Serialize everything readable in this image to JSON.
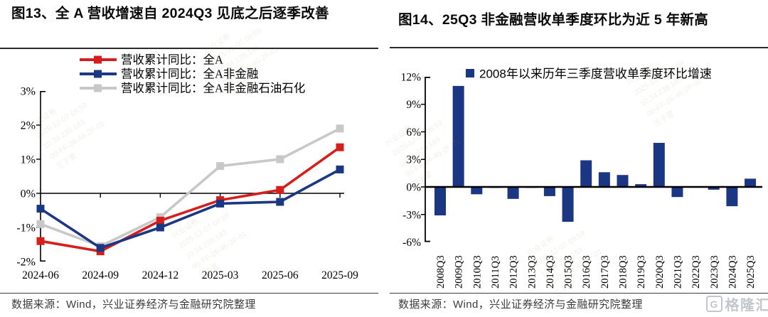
{
  "colors": {
    "red_series": "#d41f1c",
    "navy_series": "#1b3784",
    "gray_series": "#c8c8c8",
    "axis": "#000000",
    "rule": "#2a2a2a",
    "source_text": "#3c3c3c",
    "logo_gray": "#c3c6cd",
    "watermark": "#9c7b3c"
  },
  "left_panel": {
    "title": "图13、全 A 营收增速自 2024Q3 见底之后逐季改善",
    "source": "数据来源：Wind，兴业证券经济与金融研究院整理"
  },
  "right_panel": {
    "title": "图14、25Q3 非金融营收单季度环比为近 5 年新高",
    "source": "数据来源：Wind，兴业证券经济与金融研究院整理",
    "logo": {
      "letter": "G",
      "text": "格隆汇"
    }
  },
  "chart_data": [
    {
      "type": "line",
      "title": "图13、全 A 营收增速自 2024Q3 见底之后逐季改善",
      "categories": [
        "2024-06",
        "2024-09",
        "2024-12",
        "2025-03",
        "2025-06",
        "2025-09"
      ],
      "series": [
        {
          "name": "营收累计同比：全A",
          "color": "#d41f1c",
          "values": [
            -1.4,
            -1.7,
            -0.8,
            -0.2,
            0.1,
            1.35
          ]
        },
        {
          "name": "营收累计同比：全A非金融",
          "color": "#1b3784",
          "values": [
            -0.45,
            -1.6,
            -1.0,
            -0.3,
            -0.25,
            0.7
          ]
        },
        {
          "name": "营收累计同比：全A非金融石油石化",
          "color": "#c8c8c8",
          "values": [
            -0.9,
            -1.55,
            -0.7,
            0.8,
            1.0,
            1.9
          ]
        }
      ],
      "ylim": [
        -2,
        3
      ],
      "yticks": [
        3,
        2,
        1,
        0,
        -1,
        -2
      ],
      "ytick_labels": [
        "3%",
        "2%",
        "1%",
        "0%",
        "-1%",
        "-2%"
      ],
      "unit": "%",
      "grid": false,
      "legend_position": "top"
    },
    {
      "type": "bar",
      "title": "图14、25Q3 非金融营收单季度环比为近 5 年新高",
      "legend": "2008年以来历年三季度营收单季度环比增速",
      "bar_color": "#1b3784",
      "categories": [
        "2008Q3",
        "2009Q3",
        "2010Q3",
        "2011Q3",
        "2012Q3",
        "2013Q3",
        "2014Q3",
        "2015Q3",
        "2016Q3",
        "2017Q3",
        "2018Q3",
        "2019Q3",
        "2020Q3",
        "2021Q3",
        "2022Q3",
        "2023Q3",
        "2024Q3",
        "2025Q3"
      ],
      "values": [
        -3.1,
        11.0,
        -0.8,
        -0.1,
        -1.3,
        -0.1,
        -1.0,
        -3.8,
        2.9,
        1.6,
        1.3,
        0.3,
        4.8,
        -1.1,
        -0.05,
        -0.3,
        -2.1,
        0.9
      ],
      "ylim": [
        -6,
        12
      ],
      "yticks": [
        12,
        9,
        6,
        3,
        0,
        -3,
        -6
      ],
      "ytick_labels": [
        "12%",
        "9%",
        "6%",
        "3%",
        "0%",
        "-3%",
        "-6%"
      ],
      "unit": "%",
      "grid": false,
      "legend_position": "top"
    }
  ],
  "watermark": {
    "lines": [
      "兴业证券",
      "2025-12-07 09:59",
      "10.34.239.183",
      "00-FF-26-46-2F-01",
      "王子萱"
    ]
  }
}
